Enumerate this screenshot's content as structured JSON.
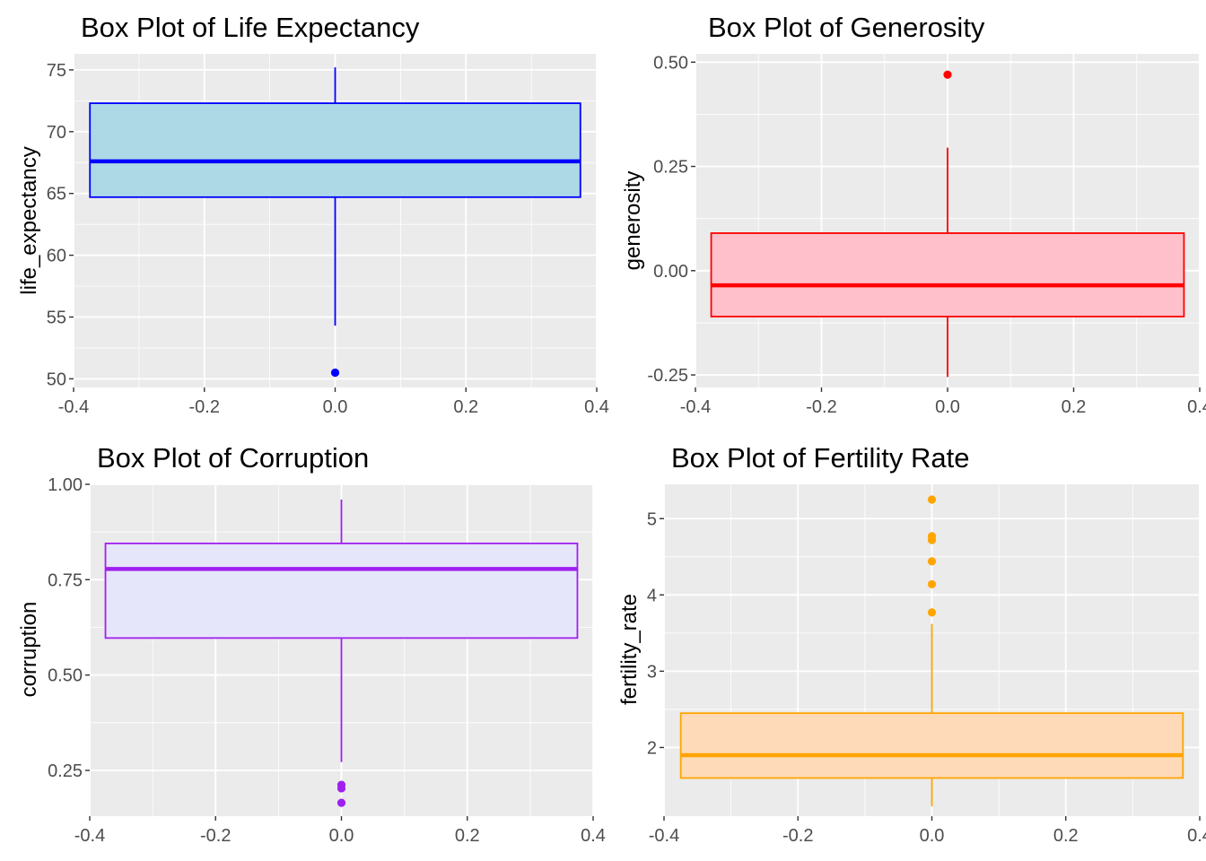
{
  "chart_data": [
    {
      "type": "boxplot",
      "title": "Box Plot of Life Expectancy",
      "xlabel": "",
      "ylabel": "life_expectancy",
      "xlim": [
        -0.4,
        0.4
      ],
      "ylim": [
        49.3,
        76.3
      ],
      "x_ticks": [
        -0.4,
        -0.2,
        0.0,
        0.2,
        0.4
      ],
      "y_ticks": [
        50,
        55,
        60,
        65,
        70,
        75
      ],
      "x_tick_labels": [
        "-0.4",
        "-0.2",
        "0.0",
        "0.2",
        "0.4"
      ],
      "y_tick_labels": [
        "50",
        "55",
        "60",
        "65",
        "70",
        "75"
      ],
      "grid": true,
      "box": {
        "x_center": 0,
        "half_width": 0.375,
        "whisker_low": 54.3,
        "q1": 64.7,
        "median": 67.6,
        "q3": 72.3,
        "whisker_high": 75.2
      },
      "outliers": [
        50.5
      ],
      "line_color": "#0000FF",
      "fill_color": "#ADD8E6"
    },
    {
      "type": "boxplot",
      "title": "Box Plot of Generosity",
      "xlabel": "",
      "ylabel": "generosity",
      "xlim": [
        -0.4,
        0.4
      ],
      "ylim": [
        -0.28,
        0.52
      ],
      "x_ticks": [
        -0.4,
        -0.2,
        0.0,
        0.2,
        0.4
      ],
      "y_ticks": [
        -0.25,
        0.0,
        0.25,
        0.5
      ],
      "x_tick_labels": [
        "-0.4",
        "-0.2",
        "0.0",
        "0.2",
        "0.4"
      ],
      "y_tick_labels": [
        "-0.25",
        "0.00",
        "0.25",
        "0.50"
      ],
      "grid": true,
      "box": {
        "x_center": 0,
        "half_width": 0.375,
        "whisker_low": -0.255,
        "q1": -0.11,
        "median": -0.035,
        "q3": 0.09,
        "whisker_high": 0.295
      },
      "outliers": [
        0.47
      ],
      "line_color": "#FF0000",
      "fill_color": "#FFC0CB"
    },
    {
      "type": "boxplot",
      "title": "Box Plot of Corruption",
      "xlabel": "",
      "ylabel": "corruption",
      "xlim": [
        -0.4,
        0.4
      ],
      "ylim": [
        0.13,
        1.0
      ],
      "x_ticks": [
        -0.4,
        -0.2,
        0.0,
        0.2,
        0.4
      ],
      "y_ticks": [
        0.25,
        0.5,
        0.75,
        1.0
      ],
      "x_tick_labels": [
        "-0.4",
        "-0.2",
        "0.0",
        "0.2",
        "0.4"
      ],
      "y_tick_labels": [
        "0.25",
        "0.50",
        "0.75",
        "1.00"
      ],
      "grid": true,
      "box": {
        "x_center": 0,
        "half_width": 0.375,
        "whisker_low": 0.272,
        "q1": 0.597,
        "median": 0.778,
        "q3": 0.845,
        "whisker_high": 0.96
      },
      "outliers": [
        0.212,
        0.203,
        0.165
      ],
      "line_color": "#A020F0",
      "fill_color": "#E6E6FA"
    },
    {
      "type": "boxplot",
      "title": "Box Plot of Fertility Rate",
      "xlabel": "",
      "ylabel": "fertility_rate",
      "xlim": [
        -0.4,
        0.4
      ],
      "ylim": [
        1.1,
        5.45
      ],
      "x_ticks": [
        -0.4,
        -0.2,
        0.0,
        0.2,
        0.4
      ],
      "y_ticks": [
        2,
        3,
        4,
        5
      ],
      "x_tick_labels": [
        "-0.4",
        "-0.2",
        "0.0",
        "0.2",
        "0.4"
      ],
      "y_tick_labels": [
        "2",
        "3",
        "4",
        "5"
      ],
      "grid": true,
      "box": {
        "x_center": 0,
        "half_width": 0.375,
        "whisker_low": 1.23,
        "q1": 1.6,
        "median": 1.9,
        "q3": 2.45,
        "whisker_high": 3.62
      },
      "outliers": [
        5.25,
        4.77,
        4.72,
        4.44,
        4.14,
        3.77
      ],
      "line_color": "#FFA500",
      "fill_color": "#FFDAB9"
    }
  ]
}
